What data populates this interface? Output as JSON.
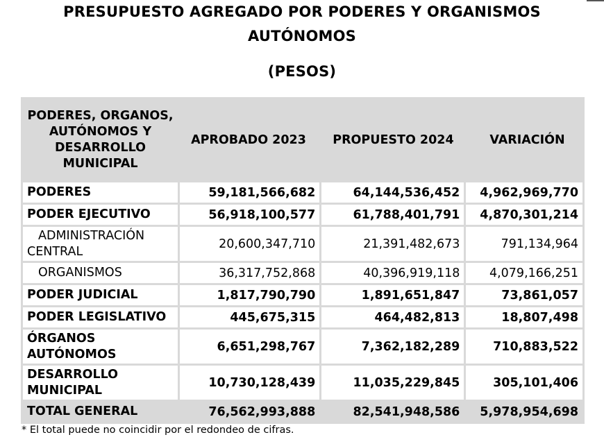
{
  "title": {
    "line1": "PRESUPUESTO AGREGADO POR PODERES Y ORGANISMOS",
    "line2": "AUTÓNOMOS",
    "line3": "(PESOS)"
  },
  "table": {
    "headers": {
      "col1": "PODERES, ORGANOS, AUTÓNOMOS Y DESARROLLO MUNICIPAL",
      "col2": "APROBADO 2023",
      "col3": "PROPUESTO 2024",
      "col4": "VARIACIÓN"
    },
    "rows": [
      {
        "label": "PODERES",
        "aprobado": "59,181,566,682",
        "propuesto": "64,144,536,452",
        "variacion": "4,962,969,770"
      },
      {
        "label": "PODER EJECUTIVO",
        "aprobado": "56,918,100,577",
        "propuesto": "61,788,401,791",
        "variacion": "4,870,301,214"
      },
      {
        "label": "ADMINISTRACIÓN CENTRAL",
        "aprobado": "20,600,347,710",
        "propuesto": "21,391,482,673",
        "variacion": "791,134,964"
      },
      {
        "label": "ORGANISMOS",
        "aprobado": "36,317,752,868",
        "propuesto": "40,396,919,118",
        "variacion": "4,079,166,251"
      },
      {
        "label": "PODER JUDICIAL",
        "aprobado": "1,817,790,790",
        "propuesto": "1,891,651,847",
        "variacion": "73,861,057"
      },
      {
        "label": "PODER LEGISLATIVO",
        "aprobado": "445,675,315",
        "propuesto": "464,482,813",
        "variacion": "18,807,498"
      },
      {
        "label": "ÓRGANOS AUTÓNOMOS",
        "aprobado": "6,651,298,767",
        "propuesto": "7,362,182,289",
        "variacion": "710,883,522"
      },
      {
        "label": "DESARROLLO MUNICIPAL",
        "aprobado": "10,730,128,439",
        "propuesto": "11,035,229,845",
        "variacion": "305,101,406"
      }
    ],
    "total": {
      "label": "TOTAL GENERAL",
      "aprobado": "76,562,993,888",
      "propuesto": "82,541,948,586",
      "variacion": "5,978,954,698"
    }
  },
  "footnote": "* El total puede no coincidir por el redondeo de cifras."
}
